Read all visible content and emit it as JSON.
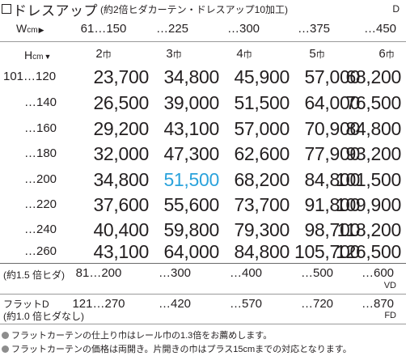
{
  "title": {
    "text": "ドレスアップ",
    "subtitle": "(約2倍ヒダカーテン・ドレスアップ10加工)",
    "code": "D"
  },
  "width_header": {
    "label": "W",
    "unit": "cm",
    "arrow": "▶",
    "values": [
      "61…150",
      "…225",
      "…300",
      "…375",
      "…450"
    ]
  },
  "height_header": {
    "label": "H",
    "unit": "cm",
    "arrow": "▼",
    "panels": [
      {
        "num": "2",
        "unit": "巾"
      },
      {
        "num": "3",
        "unit": "巾"
      },
      {
        "num": "4",
        "unit": "巾"
      },
      {
        "num": "5",
        "unit": "巾"
      },
      {
        "num": "6",
        "unit": "巾"
      }
    ]
  },
  "price_rows": [
    {
      "height": "101…120",
      "prices": [
        "23,700",
        "34,800",
        "45,900",
        "57,000",
        "68,200"
      ]
    },
    {
      "height": "…140",
      "prices": [
        "26,500",
        "39,000",
        "51,500",
        "64,000",
        "76,500"
      ]
    },
    {
      "height": "…160",
      "prices": [
        "29,200",
        "43,100",
        "57,000",
        "70,900",
        "84,800"
      ]
    },
    {
      "height": "…180",
      "prices": [
        "32,000",
        "47,300",
        "62,600",
        "77,900",
        "93,200"
      ]
    },
    {
      "height": "…200",
      "prices": [
        "34,800",
        "51,500",
        "68,200",
        "84,800",
        "101,500"
      ]
    },
    {
      "height": "…220",
      "prices": [
        "37,600",
        "55,600",
        "73,700",
        "91,800",
        "109,900"
      ]
    },
    {
      "height": "…240",
      "prices": [
        "40,400",
        "59,800",
        "79,300",
        "98,700",
        "118,200"
      ]
    },
    {
      "height": "…260",
      "prices": [
        "43,100",
        "64,000",
        "84,800",
        "105,700",
        "126,500"
      ]
    }
  ],
  "highlight": {
    "row": 4,
    "col": 1,
    "color": "#2ba3dc"
  },
  "option_rows": [
    {
      "label_lines": [
        "(約1.5 倍ヒダ)"
      ],
      "values": [
        "81…200",
        "…300",
        "…400",
        "…500",
        "…600"
      ],
      "code": "VD"
    },
    {
      "label_lines": [
        "フラットD",
        "(約1.0 倍ヒダなし)"
      ],
      "values": [
        "121…270",
        "…420",
        "…570",
        "…720",
        "…870"
      ],
      "code": "FD"
    }
  ],
  "notes": [
    "フラットカーテンの仕上り巾はレール巾の1.3倍をお薦めします。",
    "フラットカーテンの価格は両開き。片開きの巾はプラス15cmまでの対応となります。"
  ],
  "colors": {
    "text": "#231f20",
    "highlight": "#2ba3dc",
    "bullet": "#8d8d8d",
    "rule": "#9a9a9a"
  }
}
